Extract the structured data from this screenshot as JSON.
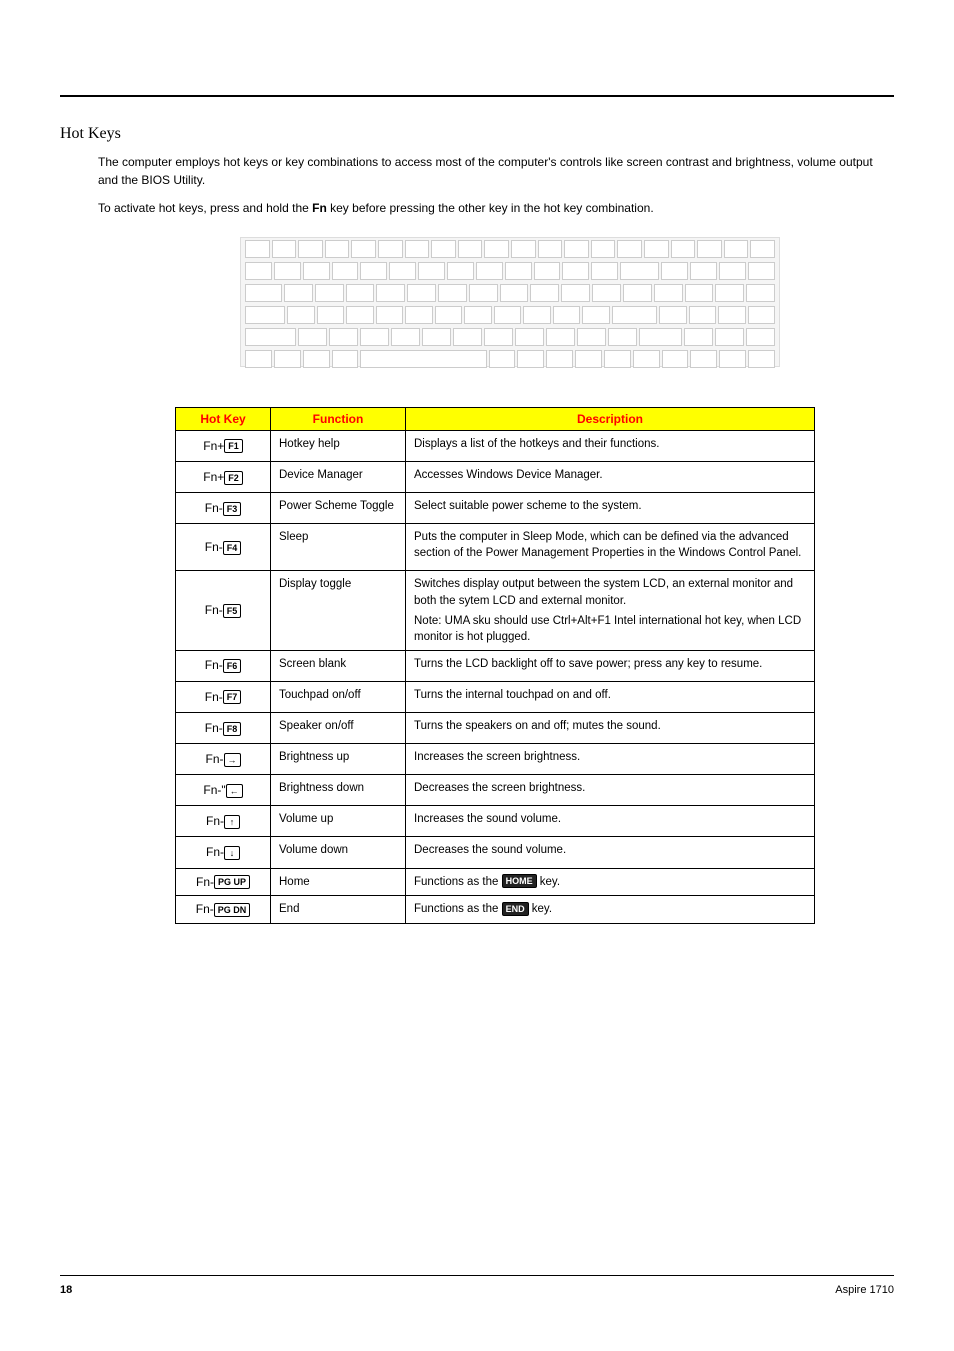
{
  "page": {
    "section_title": "Hot Keys",
    "intro1_a": "The computer employs hot keys or key combinations to access most of the computer's controls like screen contrast and brightness, volume output and the BIOS Utility.",
    "intro2_a": "To activate hot keys, press and hold the ",
    "intro2_b": "Fn",
    "intro2_c": " key before pressing the other key in the hot key combination."
  },
  "table": {
    "headers": {
      "hotkey": "Hot Key",
      "function": "Function",
      "description": "Description"
    },
    "rows": [
      {
        "key_prefix": "Fn+",
        "key_cap": "F1",
        "function": "Hotkey help",
        "description": "Displays a list of the hotkeys and their functions."
      },
      {
        "key_prefix": "Fn+",
        "key_cap": "F2",
        "function": "Device Manager",
        "description": "Accesses Windows Device Manager."
      },
      {
        "key_prefix": "Fn-",
        "key_cap": "F3",
        "function": "Power Scheme Toggle",
        "description": "Select suitable power scheme to the system."
      },
      {
        "key_prefix": "Fn-",
        "key_cap": "F4",
        "function": "Sleep",
        "description": "Puts the computer in Sleep Mode, which can be defined via the advanced section of the Power Management Properties in the Windows Control Panel."
      },
      {
        "key_prefix": "Fn-",
        "key_cap": "F5",
        "function": "Display toggle",
        "description": "Switches display output between the system LCD, an external monitor and both the sytem LCD and external monitor.",
        "description2": "Note: UMA sku should use Ctrl+Alt+F1 Intel international hot key, when LCD monitor is hot plugged."
      },
      {
        "key_prefix": "Fn-",
        "key_cap": "F6",
        "function": "Screen blank",
        "description": "Turns the LCD backlight off to save power; press any key to resume."
      },
      {
        "key_prefix": "Fn-",
        "key_cap": "F7",
        "function": "Touchpad on/off",
        "description": "Turns the internal touchpad on and off."
      },
      {
        "key_prefix": "Fn-",
        "key_cap": "F8",
        "function": "Speaker on/off",
        "description": "Turns the speakers on and off; mutes the sound."
      },
      {
        "key_prefix": "Fn-",
        "key_cap": "→",
        "function": "Brightness up",
        "description": "Increases the screen brightness."
      },
      {
        "key_prefix": "Fn-\"",
        "key_cap": "←",
        "function": "Brightness down",
        "description": "Decreases the screen brightness."
      },
      {
        "key_prefix": "Fn-",
        "key_cap": "↑",
        "function": "Volume up",
        "description": "Increases the sound volume."
      },
      {
        "key_prefix": "Fn-",
        "key_cap": "↓",
        "function": "Volume down",
        "description": "Decreases the sound volume."
      },
      {
        "key_prefix": "Fn-",
        "key_cap": "PG UP",
        "function": "Home",
        "description_pre": "Functions as the ",
        "description_key": "HOME",
        "description_post": " key."
      },
      {
        "key_prefix": "Fn-",
        "key_cap": "PG DN",
        "function": "End",
        "description_pre": "Functions as the ",
        "description_key": "END",
        "description_post": " key."
      }
    ]
  },
  "footer": {
    "page_number": "18",
    "model": "Aspire 1710"
  },
  "colors": {
    "header_bg": "#ffff00",
    "header_text": "#ff0000",
    "border": "#000000"
  }
}
